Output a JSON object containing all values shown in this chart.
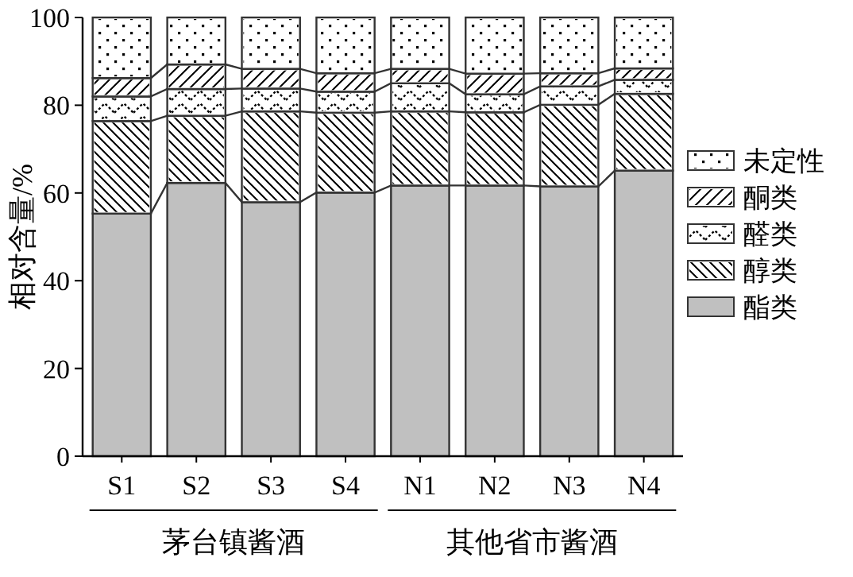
{
  "chart_data": {
    "type": "bar",
    "stacked": true,
    "ylabel": "相对含量/%",
    "categories": [
      "S1",
      "S2",
      "S3",
      "S4",
      "N1",
      "N2",
      "N3",
      "N4"
    ],
    "ylim": [
      0,
      100
    ],
    "yticks": [
      0,
      20,
      40,
      60,
      80,
      100
    ],
    "legend": "right",
    "annotations": [
      "茅台镇酱酒",
      "其他省市酱酒"
    ],
    "series": [
      {
        "name": "酯类",
        "color": "#c0c0c0",
        "values": [
          55.3,
          62.3,
          57.9,
          60.1,
          61.7,
          61.7,
          61.5,
          65.1
        ]
      },
      {
        "name": "醇类",
        "color": "#ffffff",
        "values": [
          21.1,
          15.3,
          20.7,
          18.2,
          16.9,
          16.7,
          18.6,
          17.5
        ]
      },
      {
        "name": "醛类",
        "color": "#ffffff",
        "values": [
          5.6,
          6.1,
          5.2,
          4.8,
          6.4,
          4.1,
          4.2,
          3.2
        ]
      },
      {
        "name": "酮类",
        "color": "#ffffff",
        "values": [
          4.2,
          5.6,
          4.5,
          4.2,
          3.3,
          4.7,
          3.0,
          2.6
        ]
      },
      {
        "name": "未定性",
        "color": "#ffffff",
        "values": [
          13.8,
          10.7,
          11.7,
          12.7,
          11.7,
          12.8,
          12.7,
          11.6
        ]
      }
    ]
  }
}
